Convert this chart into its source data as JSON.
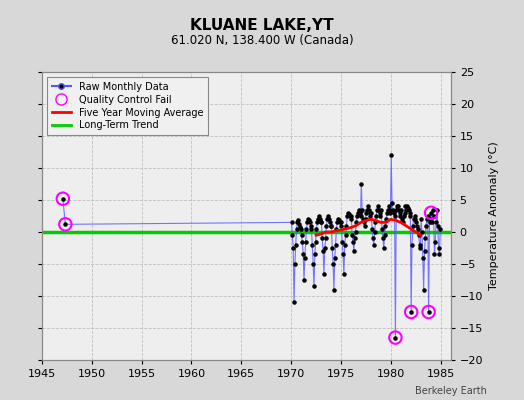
{
  "title": "KLUANE LAKE,YT",
  "subtitle": "61.020 N, 138.400 W (Canada)",
  "ylabel": "Temperature Anomaly (°C)",
  "watermark": "Berkeley Earth",
  "xlim": [
    1945,
    1986
  ],
  "ylim": [
    -20,
    25
  ],
  "yticks": [
    -20,
    -15,
    -10,
    -5,
    0,
    5,
    10,
    15,
    20,
    25
  ],
  "xticks": [
    1945,
    1950,
    1955,
    1960,
    1965,
    1970,
    1975,
    1980,
    1985
  ],
  "bg_color": "#e0e0e0",
  "plot_bg_color": "#f0f0f0",
  "raw_monthly": [
    [
      1947.1,
      5.2
    ],
    [
      1947.35,
      1.2
    ],
    [
      1970.04,
      1.5
    ],
    [
      1970.12,
      -0.5
    ],
    [
      1970.21,
      -2.5
    ],
    [
      1970.29,
      -11.0
    ],
    [
      1970.38,
      -5.0
    ],
    [
      1970.46,
      -2.0
    ],
    [
      1970.54,
      0.5
    ],
    [
      1970.63,
      1.5
    ],
    [
      1970.71,
      1.8
    ],
    [
      1970.79,
      1.2
    ],
    [
      1970.88,
      0.8
    ],
    [
      1970.96,
      0.5
    ],
    [
      1971.04,
      -0.5
    ],
    [
      1971.12,
      -1.5
    ],
    [
      1971.21,
      -3.5
    ],
    [
      1971.29,
      -7.5
    ],
    [
      1971.38,
      -4.0
    ],
    [
      1971.46,
      -1.5
    ],
    [
      1971.54,
      0.5
    ],
    [
      1971.63,
      1.5
    ],
    [
      1971.71,
      2.0
    ],
    [
      1971.79,
      1.8
    ],
    [
      1971.88,
      1.5
    ],
    [
      1971.96,
      1.0
    ],
    [
      1972.04,
      0.5
    ],
    [
      1972.12,
      -2.0
    ],
    [
      1972.21,
      -5.0
    ],
    [
      1972.29,
      -8.5
    ],
    [
      1972.38,
      -3.5
    ],
    [
      1972.46,
      -1.5
    ],
    [
      1972.54,
      0.5
    ],
    [
      1972.63,
      1.5
    ],
    [
      1972.71,
      2.0
    ],
    [
      1972.79,
      2.5
    ],
    [
      1972.88,
      2.0
    ],
    [
      1972.96,
      1.5
    ],
    [
      1973.04,
      1.5
    ],
    [
      1973.12,
      -1.0
    ],
    [
      1973.21,
      -3.0
    ],
    [
      1973.29,
      -6.5
    ],
    [
      1973.38,
      -2.5
    ],
    [
      1973.46,
      -1.0
    ],
    [
      1973.54,
      1.0
    ],
    [
      1973.63,
      2.0
    ],
    [
      1973.71,
      2.5
    ],
    [
      1973.79,
      2.0
    ],
    [
      1973.88,
      1.5
    ],
    [
      1973.96,
      1.0
    ],
    [
      1974.04,
      1.0
    ],
    [
      1974.12,
      -2.5
    ],
    [
      1974.21,
      -5.0
    ],
    [
      1974.29,
      -9.0
    ],
    [
      1974.38,
      -4.0
    ],
    [
      1974.46,
      -2.0
    ],
    [
      1974.54,
      0.5
    ],
    [
      1974.63,
      1.5
    ],
    [
      1974.71,
      2.0
    ],
    [
      1974.79,
      1.8
    ],
    [
      1974.88,
      1.5
    ],
    [
      1974.96,
      1.0
    ],
    [
      1975.04,
      1.5
    ],
    [
      1975.12,
      -1.5
    ],
    [
      1975.21,
      -3.5
    ],
    [
      1975.29,
      -6.5
    ],
    [
      1975.38,
      -2.0
    ],
    [
      1975.46,
      -0.5
    ],
    [
      1975.54,
      1.0
    ],
    [
      1975.63,
      2.5
    ],
    [
      1975.71,
      3.0
    ],
    [
      1975.79,
      2.8
    ],
    [
      1975.88,
      2.5
    ],
    [
      1975.96,
      2.0
    ],
    [
      1976.04,
      2.5
    ],
    [
      1976.12,
      -0.5
    ],
    [
      1976.21,
      -1.5
    ],
    [
      1976.29,
      -3.0
    ],
    [
      1976.38,
      -1.0
    ],
    [
      1976.46,
      0.0
    ],
    [
      1976.54,
      1.5
    ],
    [
      1976.63,
      2.5
    ],
    [
      1976.71,
      3.0
    ],
    [
      1976.79,
      3.5
    ],
    [
      1976.88,
      3.0
    ],
    [
      1976.96,
      2.5
    ],
    [
      1977.04,
      7.5
    ],
    [
      1977.12,
      3.5
    ],
    [
      1977.21,
      2.0
    ],
    [
      1977.29,
      1.5
    ],
    [
      1977.38,
      1.0
    ],
    [
      1977.46,
      2.0
    ],
    [
      1977.54,
      3.0
    ],
    [
      1977.63,
      3.5
    ],
    [
      1977.71,
      4.0
    ],
    [
      1977.79,
      3.5
    ],
    [
      1977.88,
      3.0
    ],
    [
      1977.96,
      2.5
    ],
    [
      1978.04,
      3.0
    ],
    [
      1978.12,
      0.5
    ],
    [
      1978.21,
      -1.0
    ],
    [
      1978.29,
      -2.0
    ],
    [
      1978.38,
      0.0
    ],
    [
      1978.46,
      1.5
    ],
    [
      1978.54,
      2.5
    ],
    [
      1978.63,
      3.5
    ],
    [
      1978.71,
      4.0
    ],
    [
      1978.79,
      3.5
    ],
    [
      1978.88,
      3.0
    ],
    [
      1978.96,
      2.5
    ],
    [
      1979.04,
      3.5
    ],
    [
      1979.12,
      0.5
    ],
    [
      1979.21,
      -1.0
    ],
    [
      1979.29,
      -2.5
    ],
    [
      1979.38,
      -0.5
    ],
    [
      1979.46,
      1.0
    ],
    [
      1979.54,
      2.0
    ],
    [
      1979.63,
      3.0
    ],
    [
      1979.71,
      3.5
    ],
    [
      1979.79,
      4.0
    ],
    [
      1979.88,
      3.5
    ],
    [
      1979.96,
      3.0
    ],
    [
      1980.04,
      12.0
    ],
    [
      1980.12,
      4.5
    ],
    [
      1980.21,
      3.5
    ],
    [
      1980.29,
      3.0
    ],
    [
      1980.38,
      2.5
    ],
    [
      1980.46,
      -16.5
    ],
    [
      1980.54,
      3.5
    ],
    [
      1980.63,
      4.0
    ],
    [
      1980.71,
      4.0
    ],
    [
      1980.79,
      3.5
    ],
    [
      1980.88,
      3.0
    ],
    [
      1980.96,
      2.5
    ],
    [
      1981.04,
      3.5
    ],
    [
      1981.12,
      2.0
    ],
    [
      1981.21,
      1.5
    ],
    [
      1981.29,
      2.5
    ],
    [
      1981.38,
      3.0
    ],
    [
      1981.46,
      4.0
    ],
    [
      1981.54,
      3.5
    ],
    [
      1981.63,
      4.0
    ],
    [
      1981.71,
      3.8
    ],
    [
      1981.79,
      3.5
    ],
    [
      1981.88,
      3.0
    ],
    [
      1981.96,
      2.5
    ],
    [
      1982.04,
      -12.5
    ],
    [
      1982.12,
      -2.0
    ],
    [
      1982.21,
      1.0
    ],
    [
      1982.29,
      2.0
    ],
    [
      1982.38,
      2.5
    ],
    [
      1982.46,
      2.0
    ],
    [
      1982.54,
      1.5
    ],
    [
      1982.63,
      1.0
    ],
    [
      1982.71,
      0.5
    ],
    [
      1982.79,
      -0.5
    ],
    [
      1982.88,
      -2.0
    ],
    [
      1982.96,
      -2.5
    ],
    [
      1983.04,
      2.0
    ],
    [
      1983.12,
      0.0
    ],
    [
      1983.21,
      -4.0
    ],
    [
      1983.29,
      -9.0
    ],
    [
      1983.38,
      -3.0
    ],
    [
      1983.46,
      -1.0
    ],
    [
      1983.54,
      1.0
    ],
    [
      1983.63,
      2.0
    ],
    [
      1983.71,
      2.5
    ],
    [
      1983.79,
      -12.5
    ],
    [
      1983.88,
      2.0
    ],
    [
      1983.96,
      1.5
    ],
    [
      1984.04,
      3.0
    ],
    [
      1984.12,
      1.5
    ],
    [
      1984.21,
      3.5
    ],
    [
      1984.29,
      2.5
    ],
    [
      1984.38,
      -3.5
    ],
    [
      1984.46,
      -1.5
    ],
    [
      1984.54,
      1.5
    ],
    [
      1984.63,
      3.5
    ],
    [
      1984.71,
      1.0
    ],
    [
      1984.79,
      -2.5
    ],
    [
      1984.88,
      -3.5
    ],
    [
      1984.96,
      0.5
    ]
  ],
  "qc_fail": [
    [
      1947.1,
      5.2
    ],
    [
      1947.35,
      1.2
    ],
    [
      1980.46,
      -16.5
    ],
    [
      1982.04,
      -12.5
    ],
    [
      1983.79,
      -12.5
    ],
    [
      1984.04,
      3.0
    ]
  ],
  "moving_avg": [
    [
      1972.5,
      -0.5
    ],
    [
      1973.0,
      -0.3
    ],
    [
      1973.5,
      0.0
    ],
    [
      1974.0,
      0.0
    ],
    [
      1974.5,
      0.2
    ],
    [
      1975.0,
      0.3
    ],
    [
      1975.5,
      0.5
    ],
    [
      1976.0,
      0.7
    ],
    [
      1976.5,
      1.0
    ],
    [
      1977.0,
      1.5
    ],
    [
      1977.5,
      1.8
    ],
    [
      1978.0,
      2.0
    ],
    [
      1978.5,
      1.8
    ],
    [
      1979.0,
      1.5
    ],
    [
      1979.5,
      1.5
    ],
    [
      1980.0,
      2.0
    ],
    [
      1980.5,
      1.8
    ],
    [
      1981.0,
      1.5
    ],
    [
      1981.5,
      1.0
    ],
    [
      1982.0,
      0.5
    ],
    [
      1982.5,
      0.0
    ],
    [
      1983.0,
      -0.5
    ]
  ],
  "colors": {
    "raw_line": "#5555ff",
    "raw_dot": "#000000",
    "qc_fail": "#ff00ff",
    "moving_avg": "#ff0000",
    "long_term": "#00cc00"
  }
}
